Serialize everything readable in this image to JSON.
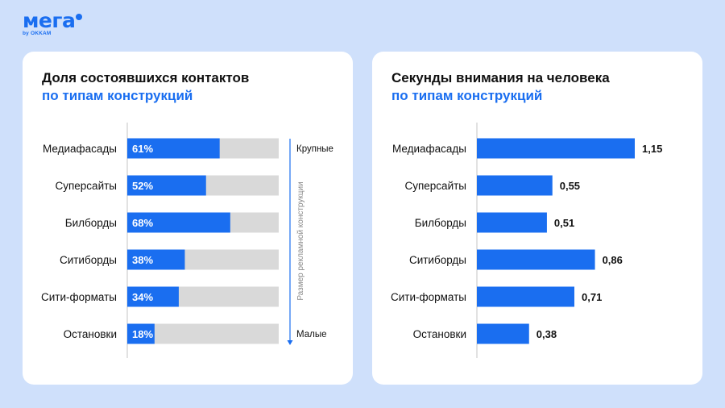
{
  "brand": {
    "name": "мега",
    "sub": "by OKKAM",
    "color": "#1a6ef0"
  },
  "colors": {
    "accent": "#1a6ef0",
    "track": "#d9d9d9",
    "background": "#cfe0fb",
    "card": "#ffffff"
  },
  "left_panel": {
    "title_line1": "Доля состоявшихся контактов",
    "title_line2": "по типам конструкций",
    "scale_top_label": "Крупные",
    "scale_bottom_label": "Малые",
    "scale_axis_label": "Размер рекламной конструкции"
  },
  "right_panel": {
    "title_line1": "Секунды внимания на человека",
    "title_line2": "по типам конструкций"
  },
  "chart_data": [
    {
      "type": "bar",
      "orientation": "horizontal",
      "title": "Доля состоявшихся контактов по типам конструкций",
      "categories": [
        "Медиафасады",
        "Суперсайты",
        "Билборды",
        "Ситиборды",
        "Сити-форматы",
        "Остановки"
      ],
      "values": [
        61,
        52,
        68,
        38,
        34,
        18
      ],
      "value_labels": [
        "61%",
        "52%",
        "68%",
        "38%",
        "34%",
        "18%"
      ],
      "unit": "%",
      "xlim": [
        0,
        100
      ]
    },
    {
      "type": "bar",
      "orientation": "horizontal",
      "title": "Секунды внимания на человека по типам конструкций",
      "categories": [
        "Медиафасады",
        "Суперсайты",
        "Билборды",
        "Ситиборды",
        "Сити-форматы",
        "Остановки"
      ],
      "values": [
        1.15,
        0.55,
        0.51,
        0.86,
        0.71,
        0.38
      ],
      "value_labels": [
        "1,15",
        "0,55",
        "0,51",
        "0,86",
        "0,71",
        "0,38"
      ],
      "xlim": [
        0,
        1.15
      ]
    }
  ]
}
